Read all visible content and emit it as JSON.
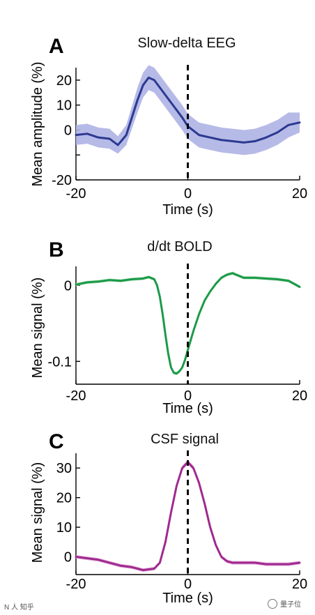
{
  "chart_data": [
    {
      "type": "line",
      "panel_letter": "A",
      "title": "Slow-delta EEG",
      "xlabel": "Time (s)",
      "ylabel": "Mean amplitude (%)",
      "xlim": [
        -20,
        20
      ],
      "ylim": [
        -20,
        25
      ],
      "xticks": [
        -20,
        0,
        20
      ],
      "xtick_labels": [
        "-20",
        "0",
        "20"
      ],
      "yticks": [
        -20,
        -10,
        0,
        10,
        20
      ],
      "ytick_labels": [
        "-20",
        "",
        "0",
        "10",
        "20"
      ],
      "color": "#2b3990",
      "band_color": "#aeb3e4",
      "vline_x": 0,
      "series": [
        {
          "x": [
            -20,
            -18,
            -16,
            -14,
            -12.5,
            -11,
            -9,
            -8,
            -7,
            -6,
            -5,
            -4,
            -3,
            -2,
            -1,
            0,
            2,
            4,
            6,
            8,
            10,
            12,
            14,
            16,
            18,
            20
          ],
          "y": [
            -2,
            -1.5,
            -3,
            -3.5,
            -6,
            -2,
            12,
            18,
            21,
            20,
            17,
            14,
            11,
            8,
            5,
            1.5,
            -2,
            -3,
            -4,
            -4.5,
            -5,
            -4.5,
            -3,
            -1,
            2,
            3
          ],
          "band": [
            -4,
            -4,
            -4,
            -4,
            -3.5,
            -4,
            -5,
            -5,
            -5,
            -5,
            -5,
            -5,
            -5,
            -5,
            -5,
            -5,
            -5,
            -5,
            -5,
            -5,
            -5,
            -5,
            -5,
            -5,
            -5,
            -4
          ]
        }
      ]
    },
    {
      "type": "line",
      "panel_letter": "B",
      "title": "d/dt BOLD",
      "xlabel": "Time (s)",
      "ylabel": "Mean signal (%)",
      "xlim": [
        -20,
        20
      ],
      "ylim": [
        -0.13,
        0.025
      ],
      "xticks": [
        -20,
        0,
        20
      ],
      "xtick_labels": [
        "-20",
        "0",
        "20"
      ],
      "yticks": [
        -0.1,
        0
      ],
      "ytick_labels": [
        "-0.1",
        "0"
      ],
      "color": "#1b9a48",
      "band_color": "#a6ddb4",
      "vline_x": 0,
      "series": [
        {
          "x": [
            -20,
            -18,
            -16,
            -14,
            -12,
            -10,
            -8,
            -7,
            -6,
            -5.5,
            -5,
            -4.5,
            -4,
            -3.5,
            -3,
            -2.5,
            -2,
            -1.5,
            -1,
            -0.5,
            0,
            1,
            2,
            3,
            4,
            5,
            6,
            7,
            8,
            9,
            10,
            12,
            14,
            16,
            18,
            20
          ],
          "y": [
            0.001,
            0.004,
            0.005,
            0.007,
            0.006,
            0.008,
            0.009,
            0.011,
            0.008,
            0,
            -0.015,
            -0.038,
            -0.065,
            -0.09,
            -0.108,
            -0.115,
            -0.116,
            -0.113,
            -0.108,
            -0.098,
            -0.085,
            -0.06,
            -0.038,
            -0.02,
            -0.008,
            0.002,
            0.01,
            0.014,
            0.016,
            0.013,
            0.01,
            0.01,
            0.009,
            0.008,
            0.006,
            -0.002
          ],
          "band": [
            0.002,
            0.002,
            0.002,
            0.002,
            0.002,
            0.002,
            0.002,
            0.002,
            0.002,
            0.002,
            0.002,
            0.002,
            0.002,
            0.002,
            0.002,
            0.002,
            0.002,
            0.002,
            0.002,
            0.002,
            0.002,
            0.002,
            0.002,
            0.002,
            0.002,
            0.002,
            0.002,
            0.002,
            0.002,
            0.002,
            0.002,
            0.002,
            0.002,
            0.002,
            0.002,
            0.002
          ]
        }
      ]
    },
    {
      "type": "line",
      "panel_letter": "C",
      "title": "CSF signal",
      "xlabel": "Time (s)",
      "ylabel": "Mean signal (%)",
      "xlim": [
        -20,
        20
      ],
      "ylim": [
        -6,
        35
      ],
      "xticks": [
        -20,
        0,
        20
      ],
      "xtick_labels": [
        "-20",
        "0",
        "20"
      ],
      "yticks": [
        0,
        10,
        20,
        30
      ],
      "ytick_labels": [
        "0",
        "10",
        "20",
        "30"
      ],
      "color": "#a0298f",
      "band_color": "#e0a9d8",
      "vline_x": 0,
      "series": [
        {
          "x": [
            -20,
            -18,
            -16,
            -14,
            -12,
            -10,
            -8,
            -6,
            -5,
            -4,
            -3,
            -2,
            -1,
            0,
            1,
            2,
            3,
            4,
            5,
            6,
            7,
            8,
            10,
            12,
            14,
            16,
            18,
            20
          ],
          "y": [
            0,
            -0.5,
            -1,
            -2,
            -3,
            -3.5,
            -4.5,
            -4,
            -2,
            5,
            15,
            24,
            30,
            32,
            30,
            25,
            18,
            10,
            4,
            0,
            -1.5,
            -2,
            -2,
            -2,
            -2.5,
            -2.5,
            -2.5,
            -2
          ],
          "band": [
            0.6,
            0.6,
            0.6,
            0.6,
            0.6,
            0.6,
            0.6,
            0.6,
            0.6,
            0.8,
            0.8,
            0.8,
            0.8,
            0.8,
            0.8,
            0.8,
            0.8,
            0.8,
            0.8,
            0.6,
            0.6,
            0.6,
            0.6,
            0.6,
            0.6,
            0.6,
            0.6,
            0.6
          ]
        }
      ]
    }
  ],
  "watermark": {
    "left_text": "N 人 知乎",
    "right_text": "量子位"
  }
}
